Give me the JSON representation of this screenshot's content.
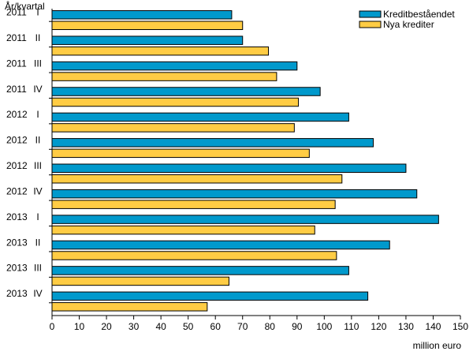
{
  "chart_data": {
    "type": "bar",
    "orientation": "horizontal",
    "ylabel": "År/kvartal",
    "xlabel": "million euro",
    "xlim": [
      0,
      150
    ],
    "xticks": [
      0,
      10,
      20,
      30,
      40,
      50,
      60,
      70,
      80,
      90,
      100,
      110,
      120,
      130,
      140,
      150
    ],
    "grid": false,
    "legend_position": "top-right",
    "categories": [
      {
        "year": "2011",
        "quarter": "I"
      },
      {
        "year": "2011",
        "quarter": "II"
      },
      {
        "year": "2011",
        "quarter": "III"
      },
      {
        "year": "2011",
        "quarter": "IV"
      },
      {
        "year": "2012",
        "quarter": "I"
      },
      {
        "year": "2012",
        "quarter": "II"
      },
      {
        "year": "2012",
        "quarter": "III"
      },
      {
        "year": "2012",
        "quarter": "IV"
      },
      {
        "year": "2013",
        "quarter": "I"
      },
      {
        "year": "2013",
        "quarter": "II"
      },
      {
        "year": "2013",
        "quarter": "III"
      },
      {
        "year": "2013",
        "quarter": "IV"
      }
    ],
    "series": [
      {
        "name": "Kreditbeståendet",
        "color": "#0099cc",
        "values": [
          66,
          70,
          90,
          98.5,
          109,
          118,
          130,
          134,
          142,
          124,
          109,
          116
        ]
      },
      {
        "name": "Nya krediter",
        "color": "#ffcc44",
        "values": [
          70,
          79.5,
          82.5,
          90.5,
          89,
          94.5,
          106.5,
          104,
          96.5,
          104.5,
          65,
          57
        ]
      }
    ]
  }
}
